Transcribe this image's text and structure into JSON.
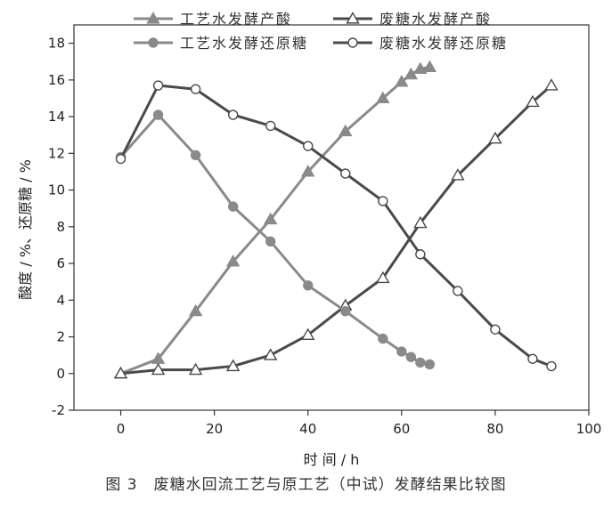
{
  "caption": "图 3　废糖水回流工艺与原工艺（中试）发酵结果比较图",
  "chart_data": {
    "type": "line",
    "xlabel": "时 间 / h",
    "ylabel": "酸度 / %、还原糖 / %",
    "xlim": [
      -10,
      100
    ],
    "ylim": [
      -2,
      19
    ],
    "xticks": [
      0,
      20,
      40,
      60,
      80,
      100
    ],
    "yticks": [
      -2,
      0,
      2,
      4,
      6,
      8,
      10,
      12,
      14,
      16,
      18
    ],
    "legend_position": "top",
    "series": [
      {
        "name": "工艺水发酵产酸",
        "color": "#8a8a8a",
        "marker": "triangle-filled",
        "x": [
          0,
          8,
          16,
          24,
          32,
          40,
          48,
          56,
          60,
          62,
          64,
          66
        ],
        "y": [
          0.0,
          0.8,
          3.4,
          6.1,
          8.4,
          11.0,
          13.2,
          15.0,
          15.9,
          16.3,
          16.6,
          16.7
        ]
      },
      {
        "name": "废糖水发酵产酸",
        "color": "#4a4a4a",
        "marker": "triangle-open",
        "x": [
          0,
          8,
          16,
          24,
          32,
          40,
          48,
          56,
          64,
          72,
          80,
          88,
          92
        ],
        "y": [
          0.0,
          0.2,
          0.2,
          0.4,
          1.0,
          2.1,
          3.7,
          5.2,
          8.2,
          10.8,
          12.8,
          14.8,
          15.7
        ]
      },
      {
        "name": "工艺水发酵还原糖",
        "color": "#8a8a8a",
        "marker": "circle-filled",
        "x": [
          0,
          8,
          16,
          24,
          32,
          40,
          48,
          56,
          60,
          62,
          64,
          66
        ],
        "y": [
          11.8,
          14.1,
          11.9,
          9.1,
          7.2,
          4.8,
          3.4,
          1.9,
          1.2,
          0.9,
          0.6,
          0.5
        ]
      },
      {
        "name": "废糖水发酵还原糖",
        "color": "#4a4a4a",
        "marker": "circle-open",
        "x": [
          0,
          8,
          16,
          24,
          32,
          40,
          48,
          56,
          64,
          72,
          80,
          88,
          92
        ],
        "y": [
          11.7,
          15.7,
          15.5,
          14.1,
          13.5,
          12.4,
          10.9,
          9.4,
          6.5,
          4.5,
          2.4,
          0.8,
          0.4
        ]
      }
    ]
  }
}
